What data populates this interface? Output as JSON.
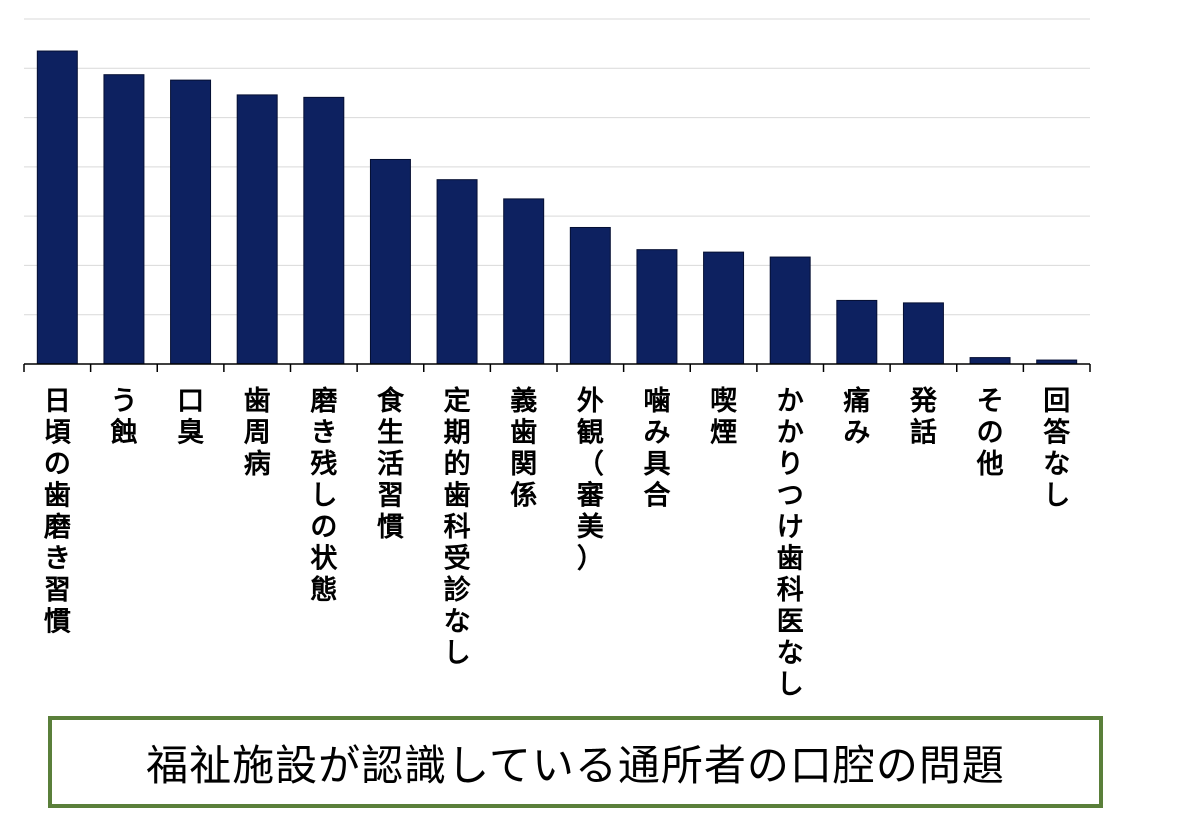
{
  "chart_data": {
    "type": "bar",
    "title": "福祉施設が認識している通所者の口腔の問題",
    "categories": [
      "日頃の歯磨き習慣",
      "う蝕",
      "口臭",
      "歯周病",
      "磨き残しの状態",
      "食生活習慣",
      "定期的歯科受診なし",
      "義歯関係",
      "外観（審美）",
      "噛み具合",
      "喫煙",
      "かかりつけ歯科医なし",
      "痛み",
      "発話",
      "その他",
      "回答なし"
    ],
    "values": [
      63.5,
      58.7,
      57.6,
      54.6,
      54.1,
      41.5,
      37.4,
      33.5,
      27.7,
      23.2,
      22.7,
      21.7,
      12.9,
      12.4,
      1.3,
      0.8
    ],
    "ylim": [
      0,
      70
    ],
    "y_grid_step": 10,
    "grid": true,
    "xlabel": "",
    "ylabel": "",
    "colors": {
      "bar": "#0d2160",
      "grid": "#d9d9d9",
      "title_border": "#5a7f3a"
    }
  }
}
